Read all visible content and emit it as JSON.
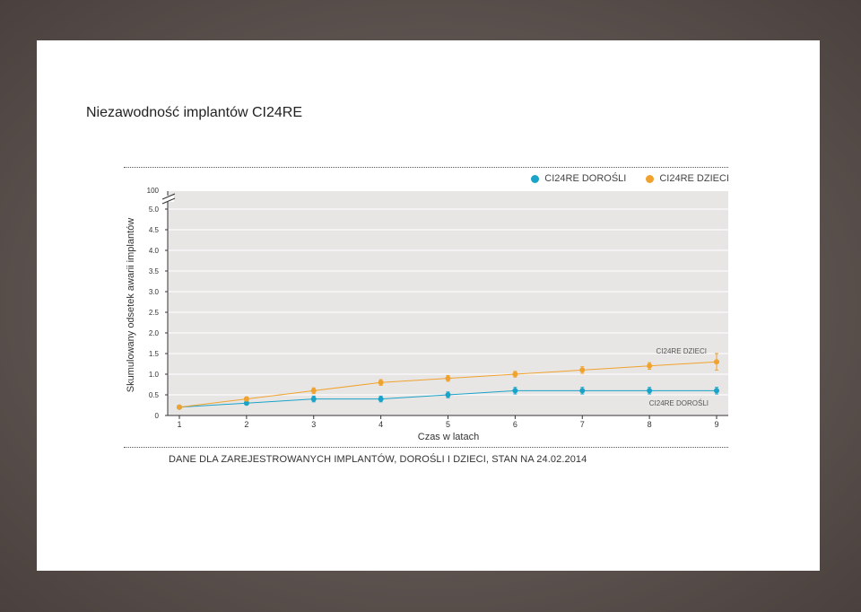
{
  "page": {
    "title": "Niezawodność implantów CI24RE",
    "footnote": "DANE DLA ZAREJESTROWANYCH IMPLANTÓW, DOROŚLI I DZIECI, STAN NA 24.02.2014"
  },
  "chart_data": {
    "type": "line",
    "title": "Niezawodność implantów CI24RE",
    "xlabel": "Czas w latach",
    "ylabel": "Skumulowany odsetek awarii implantów",
    "x": [
      1,
      2,
      3,
      4,
      5,
      6,
      7,
      8,
      9
    ],
    "x_ticks": [
      "1",
      "2",
      "3",
      "4",
      "5",
      "6",
      "7",
      "8",
      "9"
    ],
    "y_ticks": [
      "0",
      "0.5",
      "1.0",
      "1.5",
      "2.0",
      "2.5",
      "3.0",
      "3.5",
      "4.0",
      "4.5",
      "5.0"
    ],
    "y_top_break_label": "100",
    "ylim": [
      0,
      5
    ],
    "xlim": [
      1,
      9
    ],
    "grid": true,
    "legend_position": "top-right",
    "legend": [
      "CI24RE DOROŚLI",
      "CI24RE DZIECI"
    ],
    "series": [
      {
        "name": "CI24RE DOROŚLI",
        "color": "#1aa3c8",
        "label": "CI24RE DOROŚLI",
        "values": [
          0.2,
          0.3,
          0.4,
          0.4,
          0.5,
          0.6,
          0.6,
          0.6,
          0.6
        ],
        "error": [
          0,
          0.03,
          0.07,
          0.07,
          0.07,
          0.08,
          0.08,
          0.08,
          0.08
        ]
      },
      {
        "name": "CI24RE DZIECI",
        "color": "#f0a22e",
        "label": "CI24RE DZIECI",
        "values": [
          0.2,
          0.4,
          0.6,
          0.8,
          0.9,
          1.0,
          1.1,
          1.2,
          1.3
        ],
        "error": [
          0,
          0.05,
          0.07,
          0.07,
          0.07,
          0.07,
          0.08,
          0.08,
          0.2
        ]
      }
    ]
  }
}
